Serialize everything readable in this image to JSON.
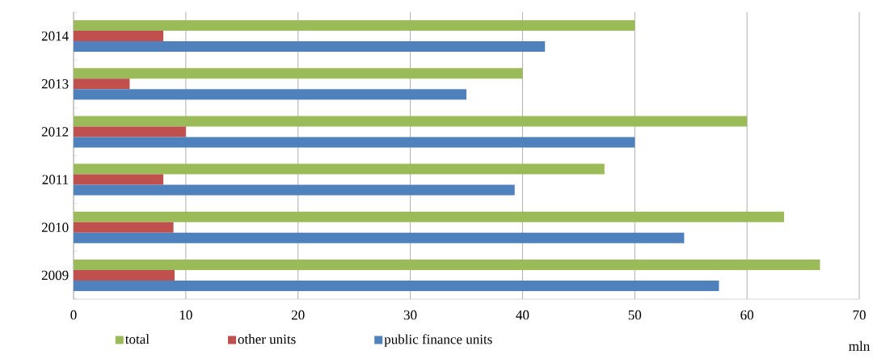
{
  "chart_data": {
    "type": "bar",
    "orientation": "horizontal",
    "categories": [
      "2014",
      "2013",
      "2012",
      "2011",
      "2010",
      "2009"
    ],
    "series": [
      {
        "name": "total",
        "color": "#9bbb59",
        "values": [
          50,
          40,
          60,
          47.3,
          63.3,
          66.5
        ]
      },
      {
        "name": "other units",
        "color": "#c0504d",
        "values": [
          8,
          5,
          10,
          8,
          8.9,
          9
        ]
      },
      {
        "name": "public finance units",
        "color": "#4f81bd",
        "values": [
          42,
          35,
          50,
          39.3,
          54.4,
          57.5
        ]
      }
    ],
    "xlim": [
      0,
      70
    ],
    "xticks": [
      0,
      10,
      20,
      30,
      40,
      50,
      60,
      70
    ],
    "xlabel": "mln",
    "grid": "x",
    "legend": "bottom"
  }
}
